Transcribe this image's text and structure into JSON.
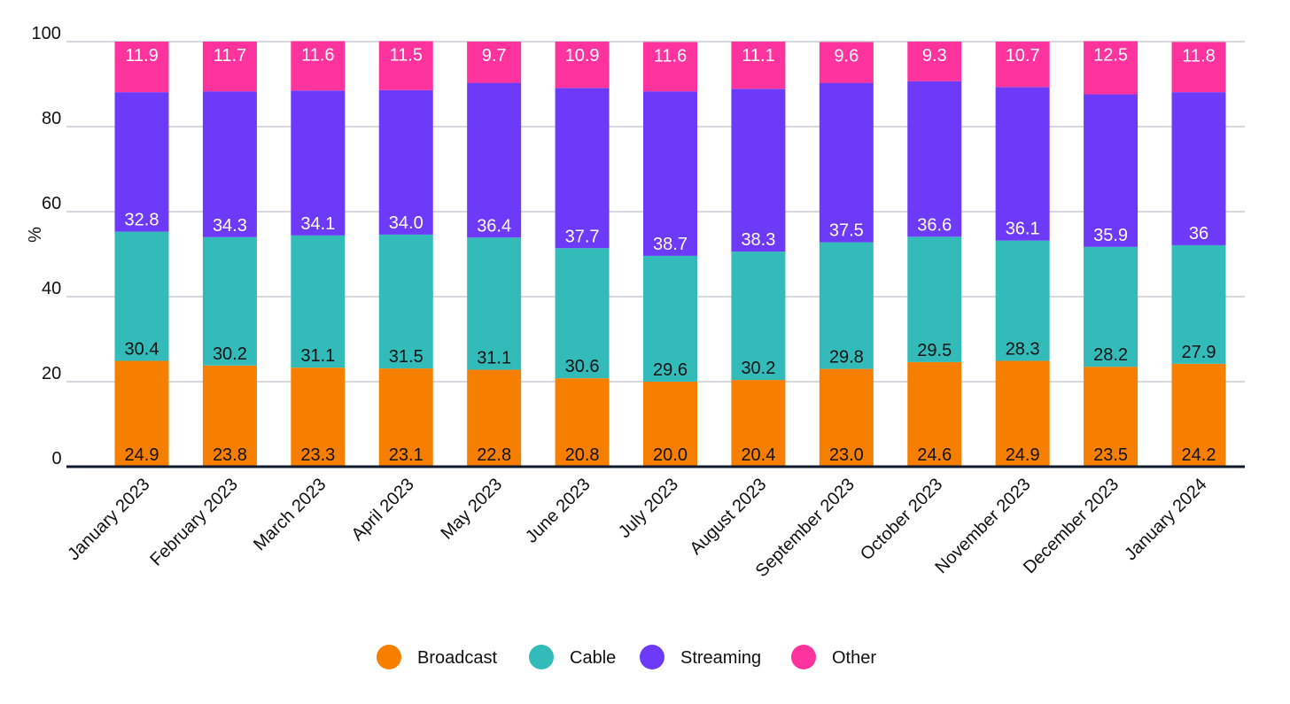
{
  "chart_data": {
    "type": "bar",
    "stacked": true,
    "title": "",
    "xlabel": "",
    "ylabel": "%",
    "ylim": [
      0,
      100
    ],
    "yticks": [
      "0",
      "20",
      "40",
      "60",
      "80",
      "100"
    ],
    "grid": true,
    "legend_placement": "bottom-center",
    "categories": [
      "January 2023",
      "February 2023",
      "March 2023",
      "April 2023",
      "May 2023",
      "June 2023",
      "July 2023",
      "August 2023",
      "September 2023",
      "October 2023",
      "November 2023",
      "December 2023",
      "January 2024"
    ],
    "series": [
      {
        "name": "Broadcast",
        "color": "#F77F00",
        "label_color": "#111111",
        "values": [
          24.9,
          23.8,
          23.3,
          23.1,
          22.8,
          20.8,
          20.0,
          20.4,
          23.0,
          24.6,
          24.9,
          23.5,
          24.2
        ],
        "labels": [
          "24.9",
          "23.8",
          "23.3",
          "23.1",
          "22.8",
          "20.8",
          "20.0",
          "20.4",
          "23.0",
          "24.6",
          "24.9",
          "23.5",
          "24.2"
        ]
      },
      {
        "name": "Cable",
        "color": "#32BBB9",
        "label_color": "#111111",
        "values": [
          30.4,
          30.2,
          31.1,
          31.5,
          31.1,
          30.6,
          29.6,
          30.2,
          29.8,
          29.5,
          28.3,
          28.2,
          27.9
        ],
        "labels": [
          "30.4",
          "30.2",
          "31.1",
          "31.5",
          "31.1",
          "30.6",
          "29.6",
          "30.2",
          "29.8",
          "29.5",
          "28.3",
          "28.2",
          "27.9"
        ]
      },
      {
        "name": "Streaming",
        "color": "#6E3AFA",
        "label_color": "#FFFFFF",
        "values": [
          32.8,
          34.3,
          34.1,
          34.0,
          36.4,
          37.7,
          38.7,
          38.3,
          37.5,
          36.6,
          36.1,
          35.9,
          36
        ],
        "labels": [
          "32.8",
          "34.3",
          "34.1",
          "34.0",
          "36.4",
          "37.7",
          "38.7",
          "38.3",
          "37.5",
          "36.6",
          "36.1",
          "35.9",
          "36"
        ]
      },
      {
        "name": "Other",
        "color": "#FF339E",
        "label_color": "#FFFFFF",
        "values": [
          11.9,
          11.7,
          11.6,
          11.5,
          9.7,
          10.9,
          11.6,
          11.1,
          9.6,
          9.3,
          10.7,
          12.5,
          11.8
        ],
        "labels": [
          "11.9",
          "11.7",
          "11.6",
          "11.5",
          "9.7",
          "10.9",
          "11.6",
          "11.1",
          "9.6",
          "9.3",
          "10.7",
          "12.5",
          "11.8"
        ]
      }
    ]
  }
}
